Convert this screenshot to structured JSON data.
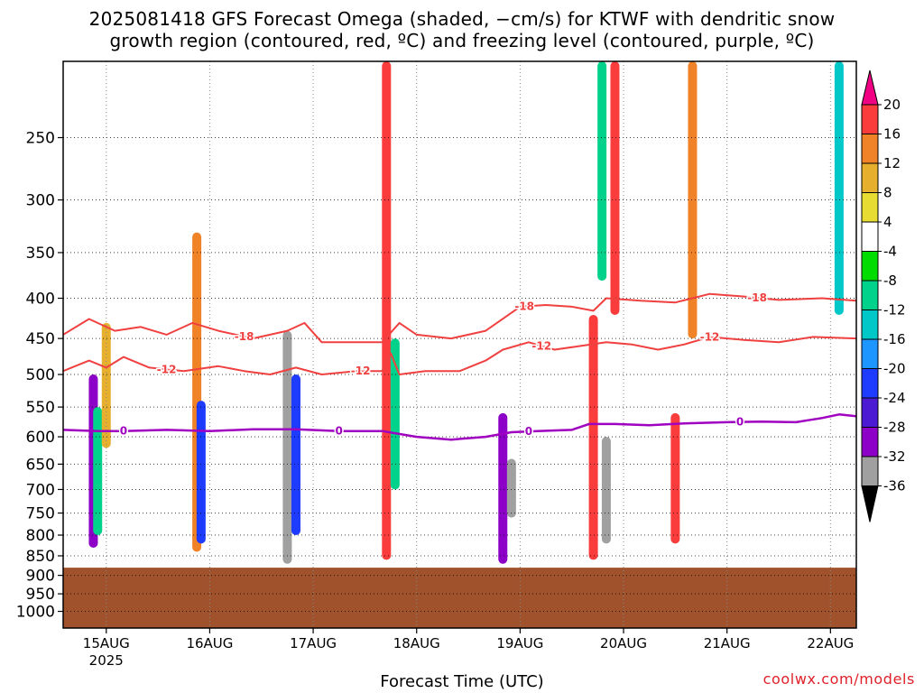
{
  "title": {
    "line1": "2025081418 GFS Forecast Omega (shaded, −cm/s) for KTWF with dendritic snow",
    "line2": "growth region (contoured, red, ºC) and freezing level (contoured, purple, ºC)"
  },
  "xaxis_title": "Forecast Time (UTC)",
  "credit": "coolwx.com/models",
  "chart_data": {
    "type": "heatmap",
    "title": "2025081418 GFS Forecast Omega (shaded, −cm/s) for KTWF with dendritic snow growth region (contoured, red, ºC) and freezing level (contoured, purple, ºC)",
    "xlabel": "Forecast Time (UTC)",
    "ylabel": "",
    "x_start_label": "2025081418",
    "x_ticks": [
      "15AUG",
      "16AUG",
      "17AUG",
      "18AUG",
      "19AUG",
      "20AUG",
      "21AUG",
      "22AUG"
    ],
    "x_tick_sublabel": "2025",
    "xlim_hours": [
      -4,
      180
    ],
    "y_ticks": [
      250,
      300,
      350,
      400,
      450,
      500,
      550,
      600,
      650,
      700,
      750,
      800,
      850,
      900,
      950,
      1000
    ],
    "ylim_hPa": [
      200,
      1050
    ],
    "y_scale": "log-pressure",
    "grid": true,
    "terrain_pressure_hPa": 880,
    "terrain_color": "#a0522d",
    "colorbar": {
      "levels": [
        -36,
        -32,
        -28,
        -24,
        -20,
        -16,
        -12,
        -8,
        -4,
        4,
        8,
        12,
        16,
        20
      ],
      "tick_labels": [
        "20",
        "16",
        "12",
        "8",
        "4",
        "-4",
        "-8",
        "-12",
        "-16",
        "-20",
        "-24",
        "-28",
        "-32",
        "-36"
      ],
      "colors": [
        "#000000",
        "#a0a0a0",
        "#8c00c8",
        "#4b1ad2",
        "#1e3cff",
        "#1e96ff",
        "#00c8c8",
        "#00d28c",
        "#00dc00",
        "#ffffff",
        "#e6dc32",
        "#e6af2d",
        "#f08228",
        "#fa3c3c",
        "#f00082"
      ]
    },
    "omega_cells": [
      {
        "t": 3,
        "p1": 500,
        "p2": 830,
        "value": -30
      },
      {
        "t": 4,
        "p1": 550,
        "p2": 800,
        "value": -10
      },
      {
        "t": 6,
        "p1": 430,
        "p2": 620,
        "value": 10
      },
      {
        "t": 27,
        "p1": 330,
        "p2": 840,
        "value": 14
      },
      {
        "t": 28,
        "p1": 540,
        "p2": 820,
        "value": -24
      },
      {
        "t": 48,
        "p1": 440,
        "p2": 870,
        "value": -36
      },
      {
        "t": 50,
        "p1": 500,
        "p2": 800,
        "value": -22
      },
      {
        "t": 71,
        "p1": 200,
        "p2": 860,
        "value": 18
      },
      {
        "t": 73,
        "p1": 450,
        "p2": 700,
        "value": -12
      },
      {
        "t": 98,
        "p1": 560,
        "p2": 870,
        "value": -30
      },
      {
        "t": 100,
        "p1": 640,
        "p2": 760,
        "value": -34
      },
      {
        "t": 119,
        "p1": 420,
        "p2": 860,
        "value": 18
      },
      {
        "t": 122,
        "p1": 600,
        "p2": 820,
        "value": -36
      },
      {
        "t": 121,
        "p1": 200,
        "p2": 380,
        "value": -12
      },
      {
        "t": 124,
        "p1": 200,
        "p2": 420,
        "value": 18
      },
      {
        "t": 138,
        "p1": 560,
        "p2": 820,
        "value": 18
      },
      {
        "t": 142,
        "p1": 200,
        "p2": 450,
        "value": 14
      },
      {
        "t": 176,
        "p1": 200,
        "p2": 420,
        "value": -14
      }
    ],
    "contours": [
      {
        "name": "-18",
        "color": "#f04040",
        "label_text": "-18",
        "points": [
          [
            -4,
            445
          ],
          [
            2,
            425
          ],
          [
            8,
            440
          ],
          [
            14,
            435
          ],
          [
            20,
            445
          ],
          [
            26,
            430
          ],
          [
            32,
            440
          ],
          [
            40,
            450
          ],
          [
            48,
            440
          ],
          [
            52,
            430
          ],
          [
            56,
            455
          ],
          [
            62,
            455
          ],
          [
            70,
            455
          ],
          [
            74,
            430
          ],
          [
            78,
            445
          ],
          [
            86,
            450
          ],
          [
            94,
            440
          ],
          [
            102,
            410
          ],
          [
            108,
            408
          ],
          [
            114,
            410
          ],
          [
            119,
            415
          ],
          [
            122,
            400
          ],
          [
            130,
            403
          ],
          [
            138,
            405
          ],
          [
            146,
            395
          ],
          [
            154,
            398
          ],
          [
            162,
            402
          ],
          [
            172,
            400
          ],
          [
            180,
            403
          ]
        ]
      },
      {
        "name": "-12",
        "color": "#f04040",
        "label_text": "-12",
        "points": [
          [
            -4,
            495
          ],
          [
            2,
            480
          ],
          [
            6,
            490
          ],
          [
            10,
            475
          ],
          [
            16,
            490
          ],
          [
            24,
            495
          ],
          [
            32,
            488
          ],
          [
            38,
            495
          ],
          [
            44,
            500
          ],
          [
            50,
            490
          ],
          [
            56,
            500
          ],
          [
            64,
            495
          ],
          [
            70,
            495
          ],
          [
            72,
            470
          ],
          [
            74,
            500
          ],
          [
            80,
            495
          ],
          [
            88,
            495
          ],
          [
            94,
            480
          ],
          [
            98,
            465
          ],
          [
            104,
            455
          ],
          [
            110,
            465
          ],
          [
            116,
            460
          ],
          [
            122,
            455
          ],
          [
            128,
            458
          ],
          [
            134,
            465
          ],
          [
            140,
            458
          ],
          [
            146,
            448
          ],
          [
            154,
            452
          ],
          [
            162,
            455
          ],
          [
            170,
            448
          ],
          [
            180,
            450
          ]
        ]
      },
      {
        "name": "0",
        "color": "#a000c0",
        "label_text": "0",
        "points": [
          [
            -4,
            588
          ],
          [
            4,
            590
          ],
          [
            10,
            590
          ],
          [
            20,
            588
          ],
          [
            30,
            590
          ],
          [
            40,
            587
          ],
          [
            50,
            587
          ],
          [
            60,
            590
          ],
          [
            70,
            590
          ],
          [
            78,
            600
          ],
          [
            86,
            605
          ],
          [
            94,
            600
          ],
          [
            100,
            592
          ],
          [
            106,
            590
          ],
          [
            114,
            588
          ],
          [
            118,
            578
          ],
          [
            124,
            578
          ],
          [
            132,
            580
          ],
          [
            140,
            577
          ],
          [
            150,
            575
          ],
          [
            158,
            574
          ],
          [
            166,
            575
          ],
          [
            172,
            568
          ],
          [
            176,
            562
          ],
          [
            180,
            565
          ]
        ]
      }
    ],
    "contour_label_positions": [
      {
        "name": "-18",
        "t": 38
      },
      {
        "name": "-18",
        "t": 103
      },
      {
        "name": "-18",
        "t": 157
      },
      {
        "name": "-12",
        "t": 20
      },
      {
        "name": "-12",
        "t": 65
      },
      {
        "name": "-12",
        "t": 107
      },
      {
        "name": "-12",
        "t": 146
      },
      {
        "name": "0",
        "t": 10
      },
      {
        "name": "0",
        "t": 60
      },
      {
        "name": "0",
        "t": 104
      },
      {
        "name": "0",
        "t": 153
      }
    ]
  }
}
